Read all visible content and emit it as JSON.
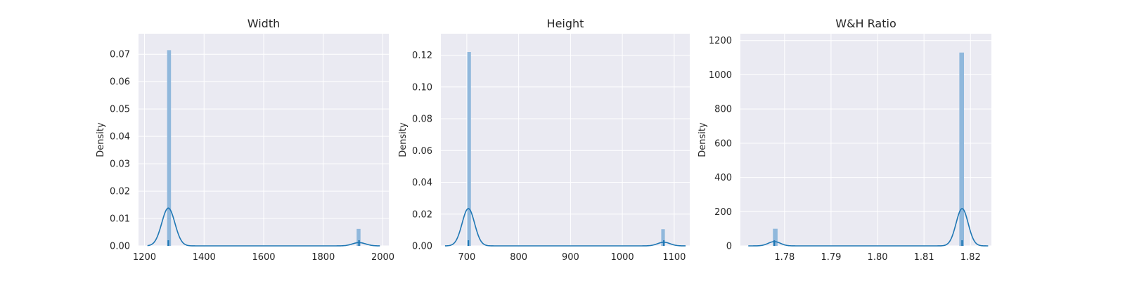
{
  "chart_data": [
    {
      "type": "histogram+kde",
      "title": "Width",
      "xlabel": "",
      "ylabel": "Density",
      "xlim": [
        1180,
        2020
      ],
      "ylim": [
        0,
        0.0775
      ],
      "xticks": [
        1200,
        1400,
        1600,
        1800,
        2000
      ],
      "yticks": [
        0.0,
        0.01,
        0.02,
        0.03,
        0.04,
        0.05,
        0.06,
        0.07
      ],
      "ytick_labels": [
        "0.00",
        "0.01",
        "0.02",
        "0.03",
        "0.04",
        "0.05",
        "0.06",
        "0.07"
      ],
      "xtick_labels": [
        "1200",
        "1400",
        "1600",
        "1800",
        "2000"
      ],
      "bins": [
        {
          "x0": 1276,
          "x1": 1289,
          "density": 0.0715
        },
        {
          "x0": 1912,
          "x1": 1925,
          "density": 0.0062
        }
      ],
      "kde_components": [
        {
          "center": 1280,
          "peak": 0.0138,
          "sd": 22
        },
        {
          "center": 1920,
          "peak": 0.0012,
          "sd": 22
        }
      ],
      "kde_range": [
        1210,
        1990
      ],
      "rug": [
        1280,
        1920
      ],
      "grid": true
    },
    {
      "type": "histogram+kde",
      "title": "Height",
      "xlabel": "",
      "ylabel": "Density",
      "xlim": [
        650,
        1130
      ],
      "ylim": [
        0,
        0.1335
      ],
      "xticks": [
        700,
        800,
        900,
        1000,
        1100
      ],
      "xtick_labels": [
        "700",
        "800",
        "900",
        "1000",
        "1100"
      ],
      "yticks": [
        0.0,
        0.02,
        0.04,
        0.06,
        0.08,
        0.1,
        0.12
      ],
      "ytick_labels": [
        "0.00",
        "0.02",
        "0.04",
        "0.06",
        "0.08",
        "0.10",
        "0.12"
      ],
      "bins": [
        {
          "x0": 701,
          "x1": 708,
          "density": 0.122
        },
        {
          "x0": 1075,
          "x1": 1082,
          "density": 0.0105
        }
      ],
      "kde_components": [
        {
          "center": 703,
          "peak": 0.0235,
          "sd": 12
        },
        {
          "center": 1080,
          "peak": 0.0023,
          "sd": 12
        }
      ],
      "kde_range": [
        658,
        1122
      ],
      "rug": [
        703,
        1080
      ],
      "grid": true
    },
    {
      "type": "histogram+kde",
      "title": "W&H Ratio",
      "xlabel": "",
      "ylabel": "Density",
      "xlim": [
        1.7705,
        1.8245
      ],
      "ylim": [
        0,
        1240
      ],
      "xticks": [
        1.78,
        1.79,
        1.8,
        1.81,
        1.82
      ],
      "xtick_labels": [
        "1.78",
        "1.79",
        "1.80",
        "1.81",
        "1.82"
      ],
      "yticks": [
        0,
        200,
        400,
        600,
        800,
        1000,
        1200
      ],
      "ytick_labels": [
        "0",
        "200",
        "400",
        "600",
        "800",
        "1000",
        "1200"
      ],
      "bins": [
        {
          "x0": 1.7775,
          "x1": 1.7785,
          "density": 100
        },
        {
          "x0": 1.8176,
          "x1": 1.8186,
          "density": 1130
        }
      ],
      "kde_components": [
        {
          "center": 1.7778,
          "peak": 25,
          "sd": 0.0013
        },
        {
          "center": 1.8182,
          "peak": 218,
          "sd": 0.0013
        }
      ],
      "kde_range": [
        1.7722,
        1.8238
      ],
      "rug": [
        1.7778,
        1.8182
      ],
      "grid": true
    }
  ]
}
